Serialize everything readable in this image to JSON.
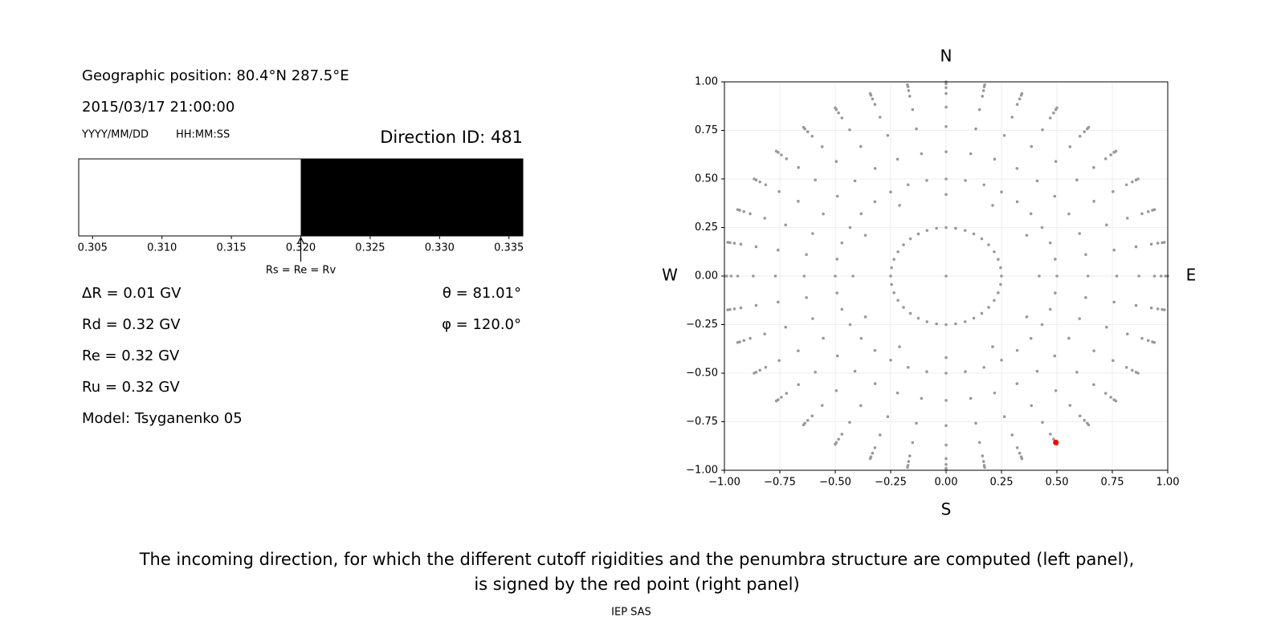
{
  "info": {
    "geographic_position": "Geographic position: 80.4°N 287.5°E",
    "datetime": "2015/03/17 21:00:00",
    "date_format": "YYYY/MM/DD",
    "time_format": "HH:MM:SS",
    "delta_r": "ΔR = 0.01 GV",
    "rd": "Rd = 0.32 GV",
    "re": "Re = 0.32 GV",
    "ru": "Ru = 0.32 GV",
    "model": "Model: Tsyganenko 05",
    "theta": "θ = 81.01°",
    "phi": "φ = 120.0°"
  },
  "caption": [
    "The incoming direction, for which the different cutoff rigidities and the penumbra structure are computed (left panel),",
    "is signed by the red point (right panel)"
  ],
  "footer": "IEP SAS",
  "chart_data": [
    {
      "type": "penumbra",
      "title": "Direction ID: 481",
      "xlim": [
        0.304,
        0.336
      ],
      "xticks": [
        0.305,
        {
          "value": 0.31,
          "label": "0.310"
        },
        0.315,
        {
          "value": 0.32,
          "label": "0.320"
        },
        0.325,
        {
          "value": 0.33,
          "label": "0.330"
        },
        0.335
      ],
      "segments": [
        {
          "from": 0.304,
          "to": 0.32,
          "color": "#ffffff"
        },
        {
          "from": 0.32,
          "to": 0.336,
          "color": "#000000"
        }
      ],
      "marker": {
        "value": 0.32,
        "label": "Rs = Re = Rv"
      }
    },
    {
      "type": "scatter",
      "grid": true,
      "xlim": [
        -1,
        1
      ],
      "ylim": [
        -1,
        1
      ],
      "xticks": [
        {
          "value": -1,
          "label": "−1.00"
        },
        {
          "value": -0.75,
          "label": "−0.75"
        },
        {
          "value": -0.5,
          "label": "−0.50"
        },
        {
          "value": -0.25,
          "label": "−0.25"
        },
        {
          "value": 0,
          "label": "0.00"
        },
        {
          "value": 0.25,
          "label": "0.25"
        },
        {
          "value": 0.5,
          "label": "0.50"
        },
        {
          "value": 0.75,
          "label": "0.75"
        },
        {
          "value": 1,
          "label": "1.00"
        }
      ],
      "yticks": [
        {
          "value": -1,
          "label": "−1.00"
        },
        {
          "value": -0.75,
          "label": "−0.75"
        },
        {
          "value": -0.5,
          "label": "−0.50"
        },
        {
          "value": -0.25,
          "label": "−0.25"
        },
        {
          "value": 0,
          "label": "0.00"
        },
        {
          "value": 0.25,
          "label": "0.25"
        },
        {
          "value": 0.5,
          "label": "0.50"
        },
        {
          "value": 0.75,
          "label": "0.75"
        },
        {
          "value": 1,
          "label": "1.00"
        }
      ],
      "directions": {
        "top": "N",
        "bottom": "S",
        "left": "W",
        "right": "E"
      },
      "series": [
        {
          "color": "#999999",
          "x": [
            0
          ],
          "y": [
            0
          ]
        },
        {
          "color": "#999999",
          "x": [
            0,
            0.043,
            0.086,
            0.125,
            0.161,
            0.192,
            0.217,
            0.235,
            0.246,
            0.25,
            0.246,
            0.235,
            0.217,
            0.192,
            0.161,
            0.125,
            0.086,
            0.043,
            0,
            -0.043,
            -0.086,
            -0.125,
            -0.161,
            -0.192,
            -0.217,
            -0.235,
            -0.246,
            -0.25,
            -0.246,
            -0.235,
            -0.217,
            -0.192,
            -0.161,
            -0.125,
            -0.086,
            -0.043
          ],
          "y": [
            0.25,
            0.246,
            0.235,
            0.217,
            0.192,
            0.161,
            0.125,
            0.086,
            0.043,
            0,
            -0.043,
            -0.086,
            -0.125,
            -0.161,
            -0.192,
            -0.217,
            -0.235,
            -0.246,
            -0.25,
            -0.246,
            -0.235,
            -0.217,
            -0.192,
            -0.161,
            -0.125,
            -0.086,
            -0.043,
            0,
            0.043,
            0.086,
            0.125,
            0.161,
            0.192,
            0.217,
            0.235,
            0.246
          ]
        },
        {
          "color": "#999999",
          "x": [
            0,
            0.21,
            0.364,
            0.42,
            0.364,
            0.21,
            0,
            -0.21,
            -0.364,
            -0.42,
            -0.364,
            -0.21
          ],
          "y": [
            0.42,
            0.364,
            0.21,
            0,
            -0.21,
            -0.364,
            -0.42,
            -0.364,
            -0.21,
            0,
            0.21,
            0.364
          ]
        },
        {
          "color": "#999999",
          "x": [
            0,
            0.087,
            0.171,
            0.25,
            0.321,
            0.383,
            0.433,
            0.47,
            0.492,
            0.5,
            0.492,
            0.47,
            0.433,
            0.383,
            0.321,
            0.25,
            0.171,
            0.087,
            0,
            -0.087,
            -0.171,
            -0.25,
            -0.321,
            -0.383,
            -0.433,
            -0.47,
            -0.492,
            -0.5,
            -0.492,
            -0.47,
            -0.433,
            -0.383,
            -0.321,
            -0.25,
            -0.171,
            -0.087
          ],
          "y": [
            0.5,
            0.492,
            0.47,
            0.433,
            0.383,
            0.321,
            0.25,
            0.171,
            0.087,
            0,
            -0.087,
            -0.171,
            -0.25,
            -0.321,
            -0.383,
            -0.433,
            -0.47,
            -0.492,
            -0.5,
            -0.492,
            -0.47,
            -0.433,
            -0.383,
            -0.321,
            -0.25,
            -0.171,
            -0.087,
            0,
            0.087,
            0.171,
            0.25,
            0.321,
            0.383,
            0.433,
            0.47,
            0.492
          ]
        },
        {
          "color": "#999999",
          "x": [
            0,
            0.111,
            0.219,
            0.32,
            0.411,
            0.49,
            0.554,
            0.602,
            0.63,
            0.64,
            0.63,
            0.602,
            0.554,
            0.49,
            0.411,
            0.32,
            0.219,
            0.111,
            0,
            -0.111,
            -0.219,
            -0.32,
            -0.411,
            -0.49,
            -0.554,
            -0.602,
            -0.63,
            -0.64,
            -0.63,
            -0.602,
            -0.554,
            -0.49,
            -0.411,
            -0.32,
            -0.219,
            -0.111
          ],
          "y": [
            0.64,
            0.63,
            0.602,
            0.554,
            0.49,
            0.411,
            0.32,
            0.219,
            0.111,
            0,
            -0.111,
            -0.219,
            -0.32,
            -0.411,
            -0.49,
            -0.554,
            -0.602,
            -0.63,
            -0.64,
            -0.63,
            -0.602,
            -0.554,
            -0.49,
            -0.411,
            -0.32,
            -0.219,
            -0.111,
            0,
            0.111,
            0.219,
            0.32,
            0.411,
            0.49,
            0.554,
            0.602,
            0.63
          ]
        },
        {
          "color": "#999999",
          "x": [
            0,
            0.134,
            0.263,
            0.385,
            0.495,
            0.59,
            0.667,
            0.724,
            0.758,
            0.77,
            0.758,
            0.724,
            0.667,
            0.59,
            0.495,
            0.385,
            0.263,
            0.134,
            0,
            -0.134,
            -0.263,
            -0.385,
            -0.495,
            -0.59,
            -0.667,
            -0.724,
            -0.758,
            -0.77,
            -0.758,
            -0.724,
            -0.667,
            -0.59,
            -0.495,
            -0.385,
            -0.263,
            -0.134
          ],
          "y": [
            0.77,
            0.758,
            0.724,
            0.667,
            0.59,
            0.495,
            0.385,
            0.263,
            0.134,
            0,
            -0.134,
            -0.263,
            -0.385,
            -0.495,
            -0.59,
            -0.667,
            -0.724,
            -0.758,
            -0.77,
            -0.758,
            -0.724,
            -0.667,
            -0.59,
            -0.495,
            -0.385,
            -0.263,
            -0.134,
            0,
            0.134,
            0.263,
            0.385,
            0.495,
            0.59,
            0.667,
            0.724,
            0.758
          ]
        },
        {
          "color": "#999999",
          "x": [
            0,
            0.151,
            0.298,
            0.435,
            0.559,
            0.666,
            0.753,
            0.818,
            0.857,
            0.87,
            0.857,
            0.818,
            0.753,
            0.666,
            0.559,
            0.435,
            0.298,
            0.151,
            0,
            -0.151,
            -0.298,
            -0.435,
            -0.559,
            -0.666,
            -0.753,
            -0.818,
            -0.857,
            -0.87,
            -0.857,
            -0.818,
            -0.753,
            -0.666,
            -0.559,
            -0.435,
            -0.298,
            -0.151
          ],
          "y": [
            0.87,
            0.857,
            0.818,
            0.753,
            0.666,
            0.559,
            0.435,
            0.298,
            0.151,
            0,
            -0.151,
            -0.298,
            -0.435,
            -0.559,
            -0.666,
            -0.753,
            -0.818,
            -0.857,
            -0.87,
            -0.857,
            -0.818,
            -0.753,
            -0.666,
            -0.559,
            -0.435,
            -0.298,
            -0.151,
            0,
            0.151,
            0.298,
            0.435,
            0.559,
            0.666,
            0.753,
            0.818,
            0.857
          ]
        },
        {
          "color": "#999999",
          "x": [
            0,
            0.164,
            0.321,
            0.47,
            0.604,
            0.72,
            0.814,
            0.884,
            0.926,
            0.94,
            0.926,
            0.884,
            0.814,
            0.72,
            0.604,
            0.47,
            0.321,
            0.164,
            0,
            -0.164,
            -0.321,
            -0.47,
            -0.604,
            -0.72,
            -0.814,
            -0.884,
            -0.926,
            -0.94,
            -0.926,
            -0.884,
            -0.814,
            -0.72,
            -0.604,
            -0.47,
            -0.321,
            -0.164
          ],
          "y": [
            0.94,
            0.926,
            0.884,
            0.814,
            0.72,
            0.604,
            0.47,
            0.321,
            0.164,
            0,
            -0.164,
            -0.321,
            -0.47,
            -0.604,
            -0.72,
            -0.814,
            -0.884,
            -0.926,
            -0.94,
            -0.926,
            -0.884,
            -0.814,
            -0.72,
            -0.604,
            -0.47,
            -0.321,
            -0.164,
            0,
            0.164,
            0.321,
            0.47,
            0.604,
            0.72,
            0.814,
            0.884,
            0.926
          ]
        },
        {
          "color": "#999999",
          "x": [
            0,
            0.169,
            0.332,
            0.485,
            0.624,
            0.743,
            0.84,
            0.912,
            0.955,
            0.97,
            0.955,
            0.912,
            0.84,
            0.743,
            0.624,
            0.485,
            0.332,
            0.169,
            0,
            -0.169,
            -0.332,
            -0.485,
            -0.624,
            -0.743,
            -0.84,
            -0.912,
            -0.955,
            -0.97,
            -0.955,
            -0.912,
            -0.84,
            -0.743,
            -0.624,
            -0.485,
            -0.332,
            -0.169
          ],
          "y": [
            0.97,
            0.955,
            0.912,
            0.84,
            0.743,
            0.624,
            0.485,
            0.332,
            0.169,
            0,
            -0.169,
            -0.332,
            -0.485,
            -0.624,
            -0.743,
            -0.84,
            -0.912,
            -0.955,
            -0.97,
            -0.955,
            -0.912,
            -0.84,
            -0.743,
            -0.624,
            -0.485,
            -0.332,
            -0.169,
            0,
            0.169,
            0.332,
            0.485,
            0.624,
            0.743,
            0.84,
            0.912,
            0.955
          ]
        },
        {
          "color": "#999999",
          "x": [
            0,
            0.172,
            0.339,
            0.495,
            0.637,
            0.758,
            0.857,
            0.931,
            0.975,
            0.99,
            0.975,
            0.931,
            0.857,
            0.758,
            0.637,
            0.495,
            0.339,
            0.172,
            0,
            -0.172,
            -0.339,
            -0.495,
            -0.637,
            -0.758,
            -0.857,
            -0.931,
            -0.975,
            -0.99,
            -0.975,
            -0.931,
            -0.857,
            -0.758,
            -0.637,
            -0.495,
            -0.339,
            -0.172
          ],
          "y": [
            0.99,
            0.975,
            0.931,
            0.857,
            0.758,
            0.637,
            0.495,
            0.339,
            0.172,
            0,
            -0.172,
            -0.339,
            -0.495,
            -0.637,
            -0.758,
            -0.857,
            -0.931,
            -0.975,
            -0.99,
            -0.975,
            -0.931,
            -0.857,
            -0.758,
            -0.637,
            -0.495,
            -0.339,
            -0.172,
            0,
            0.172,
            0.339,
            0.495,
            0.637,
            0.758,
            0.857,
            0.931,
            0.975
          ]
        },
        {
          "color": "#999999",
          "x": [
            0,
            0.174,
            0.342,
            0.5,
            0.643,
            0.766,
            0.866,
            0.94,
            0.985,
            1,
            0.985,
            0.94,
            0.866,
            0.766,
            0.643,
            0.5,
            0.342,
            0.174,
            0,
            -0.174,
            -0.342,
            -0.5,
            -0.643,
            -0.766,
            -0.866,
            -0.94,
            -0.985,
            -1,
            -0.985,
            -0.94,
            -0.866,
            -0.766,
            -0.643,
            -0.5,
            -0.342,
            -0.174
          ],
          "y": [
            1,
            0.985,
            0.94,
            0.866,
            0.766,
            0.643,
            0.5,
            0.342,
            0.174,
            0,
            -0.174,
            -0.342,
            -0.5,
            -0.643,
            -0.766,
            -0.866,
            -0.94,
            -0.985,
            -1,
            -0.985,
            -0.94,
            -0.866,
            -0.766,
            -0.643,
            -0.5,
            -0.342,
            -0.174,
            0,
            0.174,
            0.342,
            0.5,
            0.643,
            0.766,
            0.866,
            0.94,
            0.985
          ]
        },
        {
          "color": "#ff0000",
          "x": [
            0.495
          ],
          "y": [
            -0.857
          ]
        }
      ]
    }
  ]
}
